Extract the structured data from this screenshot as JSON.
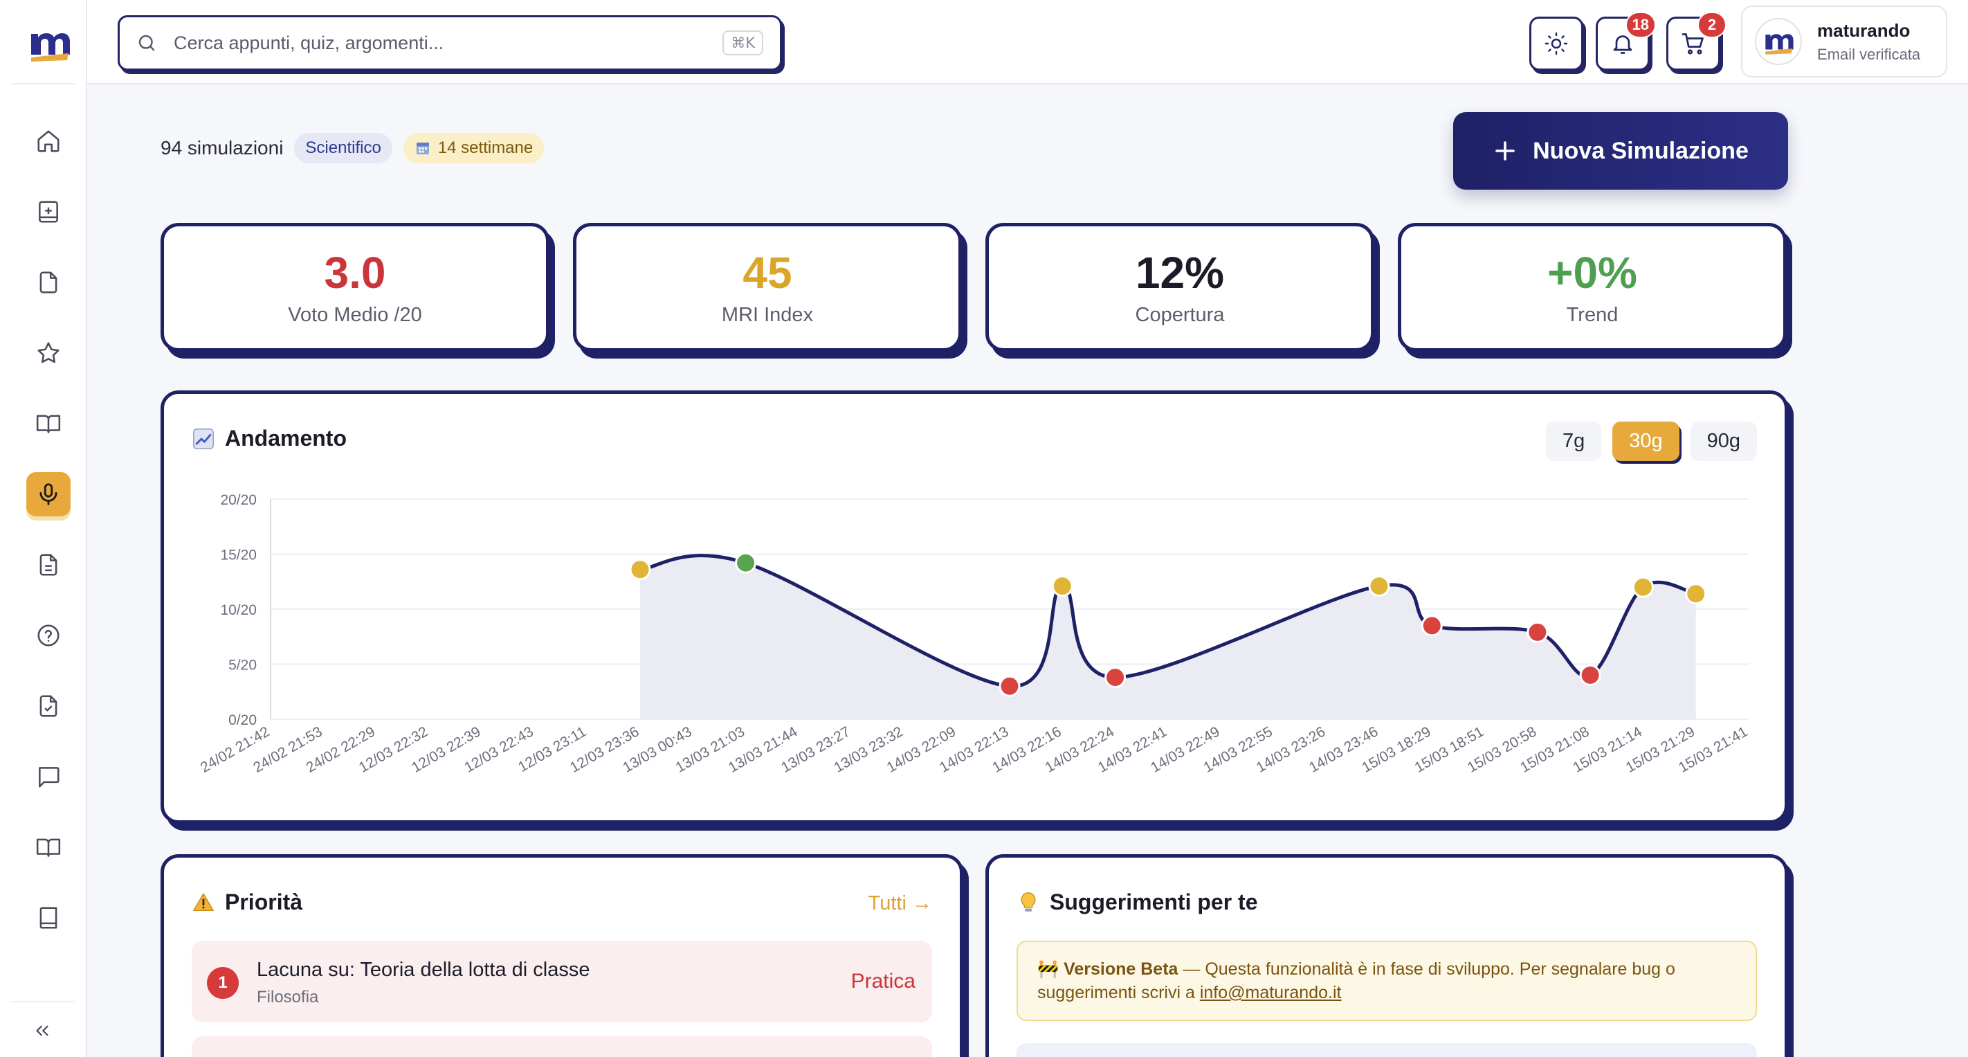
{
  "search": {
    "placeholder": "Cerca appunti, quiz, argomenti...",
    "shortcut": "⌘K"
  },
  "header": {
    "theme_icon": "sun-icon",
    "notifications": {
      "icon": "bell-icon",
      "count": "18"
    },
    "cart": {
      "icon": "cart-icon",
      "count": "2"
    },
    "user": {
      "name": "maturando",
      "status": "Email verificata"
    }
  },
  "sidebar": {
    "items": [
      {
        "icon": "home-icon",
        "active": false
      },
      {
        "icon": "notebook-plus-icon",
        "active": false
      },
      {
        "icon": "file-icon",
        "active": false
      },
      {
        "icon": "star-icon",
        "active": false
      },
      {
        "icon": "book-open-icon",
        "active": false
      },
      {
        "icon": "microphone-icon",
        "active": true
      },
      {
        "icon": "document-text-icon",
        "active": false
      },
      {
        "icon": "help-circle-icon",
        "active": false
      },
      {
        "icon": "file-check-icon",
        "active": false
      },
      {
        "icon": "message-icon",
        "active": false
      },
      {
        "icon": "book-icon",
        "active": false
      },
      {
        "icon": "book-closed-icon",
        "active": false
      }
    ],
    "collapse_icon": "chevrons-left-icon"
  },
  "meta": {
    "count": "94 simulazioni",
    "track": "Scientifico",
    "weeks": "14 settimane",
    "weeks_icon": "calendar-icon"
  },
  "new_simulation_label": "Nuova Simulazione",
  "stats": [
    {
      "value": "3.0",
      "label": "Voto Medio /20",
      "color": "#c9353a"
    },
    {
      "value": "45",
      "label": "MRI Index",
      "color": "#d9a62a"
    },
    {
      "value": "12%",
      "label": "Copertura",
      "color": "#1c1c28"
    },
    {
      "value": "+0%",
      "label": "Trend",
      "color": "#4f9e52"
    }
  ],
  "chart_card": {
    "title": "Andamento",
    "title_icon": "chart-increasing-icon",
    "ranges": [
      "7g",
      "30g",
      "90g"
    ],
    "active_range": "30g"
  },
  "chart_data": {
    "type": "line",
    "title": "Andamento",
    "x": [
      "24/02 21:42",
      "24/02 21:53",
      "24/02 22:29",
      "12/03 22:32",
      "12/03 22:39",
      "12/03 22:43",
      "12/03 23:11",
      "12/03 23:36",
      "13/03 00:43",
      "13/03 21:03",
      "13/03 21:44",
      "13/03 23:27",
      "13/03 23:32",
      "14/03 22:09",
      "14/03 22:13",
      "14/03 22:16",
      "14/03 22:24",
      "14/03 22:41",
      "14/03 22:49",
      "14/03 22:55",
      "14/03 23:26",
      "14/03 23:46",
      "15/03 18:29",
      "15/03 18:51",
      "15/03 20:58",
      "15/03 21:08",
      "15/03 21:14",
      "15/03 21:29",
      "15/03 21:41"
    ],
    "series": [
      {
        "values": [
          null,
          null,
          null,
          null,
          null,
          null,
          null,
          13.6,
          null,
          14.2,
          null,
          null,
          null,
          null,
          3.0,
          12.1,
          3.8,
          null,
          null,
          null,
          null,
          12.1,
          8.5,
          null,
          7.9,
          4.0,
          12.0,
          11.4,
          null
        ]
      }
    ],
    "ylim": [
      0,
      20
    ],
    "yticks": [
      "0/20",
      "5/20",
      "10/20",
      "15/20",
      "20/20"
    ],
    "grid": true,
    "point_colors": [
      "#e0b434",
      "#5aa34f",
      "#d9433d",
      "#e0b434",
      "#d9433d",
      "#e0b434",
      "#d9433d",
      "#d9433d",
      "#d9433d",
      "#e0b434",
      "#e0b434"
    ]
  },
  "priority": {
    "title": "Priorità",
    "title_icon": "warning-icon",
    "see_all": "Tutti →",
    "items": [
      {
        "rank": "1",
        "title": "Lacuna su: Teoria della lotta di classe",
        "subject": "Filosofia",
        "action": "Pratica"
      }
    ]
  },
  "suggestions": {
    "title": "Suggerimenti per te",
    "title_icon": "lightbulb-icon",
    "beta_label": "🚧 Versione Beta",
    "beta_text": " — Questa funzionalità è in fase di sviluppo. Per segnalare bug o suggerimenti scrivi a ",
    "beta_email": "info@maturando.it"
  },
  "colors": {
    "brand": "#1e2166",
    "accent": "#e8a93c",
    "danger": "#d9433d",
    "success": "#5aa34f",
    "warning": "#e0b434"
  }
}
